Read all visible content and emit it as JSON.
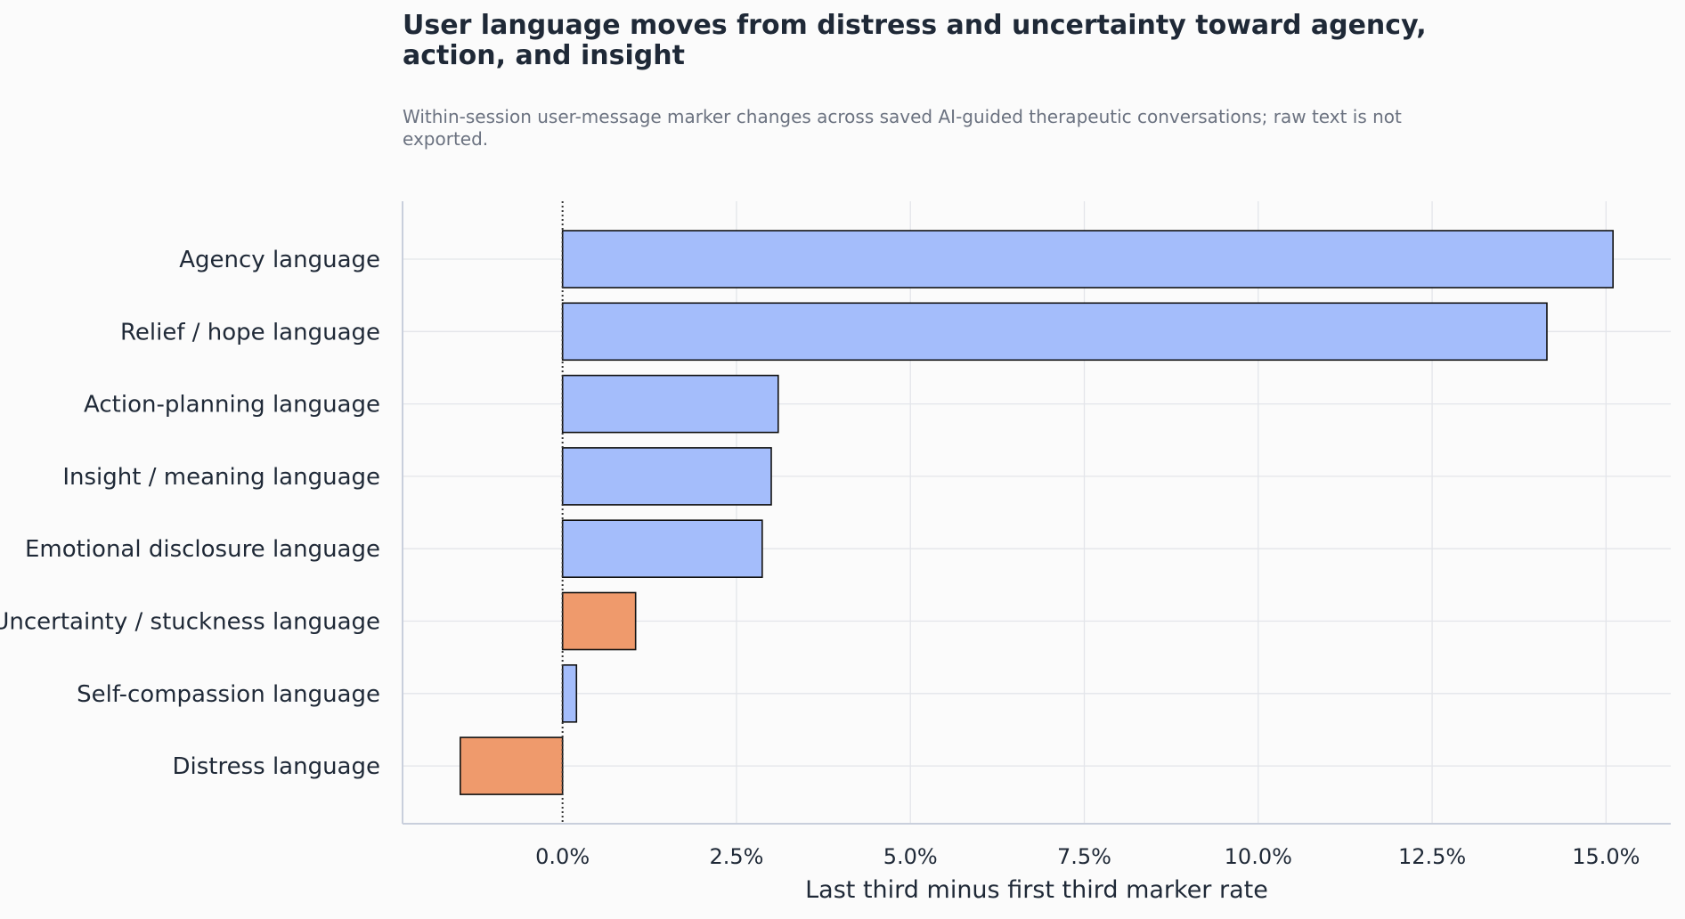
{
  "chart_data": {
    "type": "bar",
    "orientation": "horizontal",
    "title": "User language moves from distress and uncertainty toward agency, action, and insight",
    "subtitle": "Within-session user-message marker changes across saved AI-guided therapeutic conversations; raw text is not exported.",
    "xlabel": "Last third minus first third marker rate",
    "ylabel": "",
    "xlim": [
      -0.023,
      0.1593
    ],
    "x_ticks": [
      0.0,
      0.025,
      0.05,
      0.075,
      0.1,
      0.125,
      0.15
    ],
    "x_tick_labels": [
      "0.0%",
      "2.5%",
      "5.0%",
      "7.5%",
      "10.0%",
      "12.5%",
      "15.0%"
    ],
    "categories": [
      "Agency language",
      "Relief / hope language",
      "Action-planning language",
      "Insight / meaning language",
      "Emotional disclosure language",
      "Uncertainty / stuckness language",
      "Self-compassion language",
      "Distress language"
    ],
    "values": [
      0.151,
      0.1415,
      0.031,
      0.03,
      0.0287,
      0.0105,
      0.002,
      -0.0147
    ],
    "bar_kinds": [
      "positive",
      "positive",
      "positive",
      "positive",
      "positive",
      "negative",
      "positive",
      "negative"
    ],
    "grid": true,
    "zero_line": "dotted",
    "colors": {
      "positive": "#a4bdfb",
      "negative": "#ef9a6c",
      "bar_edge": "#111111",
      "grid": "#e3e5ea",
      "axis": "#c9cfdc"
    }
  }
}
